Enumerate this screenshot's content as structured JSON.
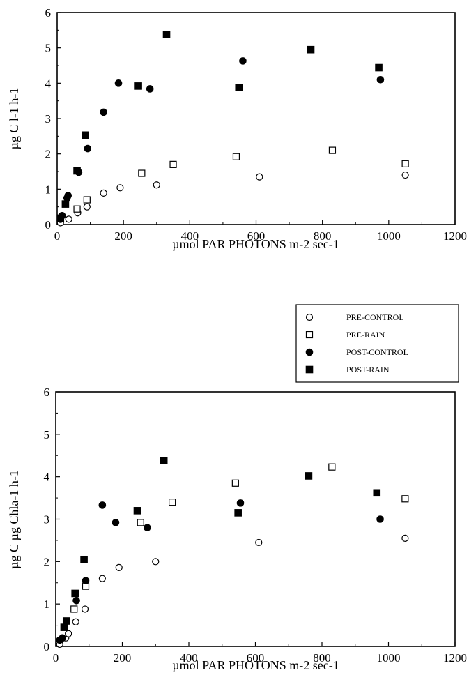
{
  "legend": {
    "items": [
      {
        "label": "PRE-CONTROL",
        "marker": "open-circle"
      },
      {
        "label": "PRE-RAIN",
        "marker": "open-square"
      },
      {
        "label": "POST-CONTROL",
        "marker": "filled-circle"
      },
      {
        "label": "POST-RAIN",
        "marker": "filled-square"
      }
    ]
  },
  "chart_data": [
    {
      "type": "scatter",
      "title": "",
      "xlabel": "µmol PAR PHOTONS m-2 sec-1",
      "ylabel": "µg C l-1 h-1",
      "xlim": [
        0,
        1200
      ],
      "ylim": [
        0,
        6
      ],
      "xticks": [
        "0",
        "200",
        "400",
        "600",
        "800",
        "1000",
        "1200"
      ],
      "yticks": [
        "0",
        "1",
        "2",
        "3",
        "4",
        "5",
        "6"
      ],
      "grid": false,
      "series": [
        {
          "name": "PRE-CONTROL",
          "marker": "open-circle",
          "points": [
            [
              10,
              0.05
            ],
            [
              35,
              0.15
            ],
            [
              62,
              0.33
            ],
            [
              90,
              0.5
            ],
            [
              140,
              0.89
            ],
            [
              190,
              1.04
            ],
            [
              300,
              1.12
            ],
            [
              610,
              1.35
            ],
            [
              1050,
              1.4
            ]
          ]
        },
        {
          "name": "PRE-RAIN",
          "marker": "open-square",
          "points": [
            [
              60,
              0.44
            ],
            [
              90,
              0.7
            ],
            [
              255,
              1.45
            ],
            [
              350,
              1.7
            ],
            [
              540,
              1.92
            ],
            [
              830,
              2.1
            ],
            [
              1050,
              1.72
            ]
          ]
        },
        {
          "name": "POST-CONTROL",
          "marker": "filled-circle",
          "points": [
            [
              10,
              0.15
            ],
            [
              15,
              0.25
            ],
            [
              30,
              0.75
            ],
            [
              33,
              0.82
            ],
            [
              65,
              1.48
            ],
            [
              92,
              2.15
            ],
            [
              140,
              3.18
            ],
            [
              185,
              4.0
            ],
            [
              280,
              3.84
            ],
            [
              560,
              4.63
            ],
            [
              975,
              4.1
            ]
          ]
        },
        {
          "name": "POST-RAIN",
          "marker": "filled-square",
          "points": [
            [
              10,
              0.18
            ],
            [
              25,
              0.58
            ],
            [
              60,
              1.52
            ],
            [
              85,
              2.53
            ],
            [
              245,
              3.92
            ],
            [
              330,
              5.38
            ],
            [
              548,
              3.88
            ],
            [
              765,
              4.95
            ],
            [
              970,
              4.44
            ]
          ]
        }
      ]
    },
    {
      "type": "scatter",
      "title": "",
      "xlabel": "µmol PAR PHOTONS m-2 sec-1",
      "ylabel": "µg C µg Chla-1 h-1",
      "xlim": [
        0,
        1200
      ],
      "ylim": [
        0,
        6
      ],
      "xticks": [
        "0",
        "200",
        "400",
        "600",
        "800",
        "1000",
        "1200"
      ],
      "yticks": [
        "0",
        "1",
        "2",
        "3",
        "4",
        "5",
        "6"
      ],
      "grid": false,
      "series": [
        {
          "name": "PRE-CONTROL",
          "marker": "open-circle",
          "points": [
            [
              12,
              0.05
            ],
            [
              30,
              0.2
            ],
            [
              38,
              0.3
            ],
            [
              60,
              0.58
            ],
            [
              88,
              0.88
            ],
            [
              140,
              1.6
            ],
            [
              190,
              1.86
            ],
            [
              300,
              2.0
            ],
            [
              610,
              2.45
            ],
            [
              1050,
              2.55
            ]
          ]
        },
        {
          "name": "PRE-RAIN",
          "marker": "open-square",
          "points": [
            [
              55,
              0.88
            ],
            [
              90,
              1.42
            ],
            [
              255,
              2.92
            ],
            [
              350,
              3.4
            ],
            [
              540,
              3.85
            ],
            [
              830,
              4.23
            ],
            [
              1050,
              3.48
            ]
          ]
        },
        {
          "name": "POST-CONTROL",
          "marker": "filled-circle",
          "points": [
            [
              12,
              0.15
            ],
            [
              20,
              0.2
            ],
            [
              62,
              1.08
            ],
            [
              90,
              1.55
            ],
            [
              140,
              3.33
            ],
            [
              180,
              2.92
            ],
            [
              275,
              2.8
            ],
            [
              555,
              3.38
            ],
            [
              975,
              3.0
            ]
          ]
        },
        {
          "name": "POST-RAIN",
          "marker": "filled-square",
          "points": [
            [
              25,
              0.45
            ],
            [
              32,
              0.6
            ],
            [
              58,
              1.25
            ],
            [
              85,
              2.05
            ],
            [
              245,
              3.2
            ],
            [
              325,
              4.38
            ],
            [
              548,
              3.15
            ],
            [
              760,
              4.02
            ],
            [
              965,
              3.62
            ]
          ]
        }
      ]
    }
  ]
}
